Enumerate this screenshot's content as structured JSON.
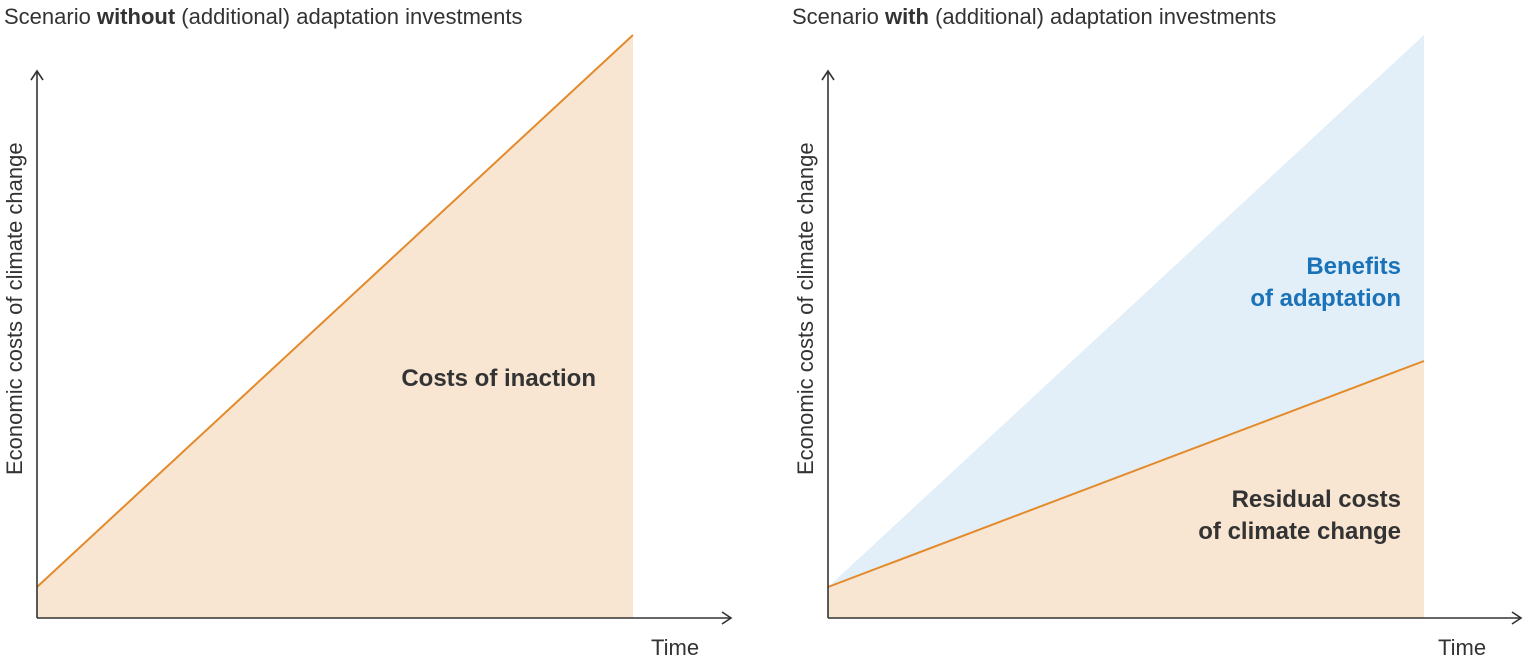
{
  "left_panel": {
    "title_prefix": "Scenario ",
    "title_bold": "without",
    "title_suffix": " (additional) adaptation investments",
    "y_axis_label": "Economic costs of climate change",
    "x_axis_label": "Time",
    "area_label": "Costs of inaction"
  },
  "right_panel": {
    "title_prefix": "Scenario ",
    "title_bold": "with",
    "title_suffix": " (additional) adaptation investments",
    "y_axis_label": "Economic costs of climate change",
    "x_axis_label": "Time",
    "benefits_label_line1": "Benefits",
    "benefits_label_line2": "of adaptation",
    "residual_label_line1": "Residual costs",
    "residual_label_line2": "of climate change"
  },
  "colors": {
    "cost_fill": "#f8e6d3",
    "cost_line": "#e38b2c",
    "benefit_fill": "#e3eff8",
    "benefit_text": "#1a72b8",
    "axis": "#333333",
    "text": "#333333"
  }
}
